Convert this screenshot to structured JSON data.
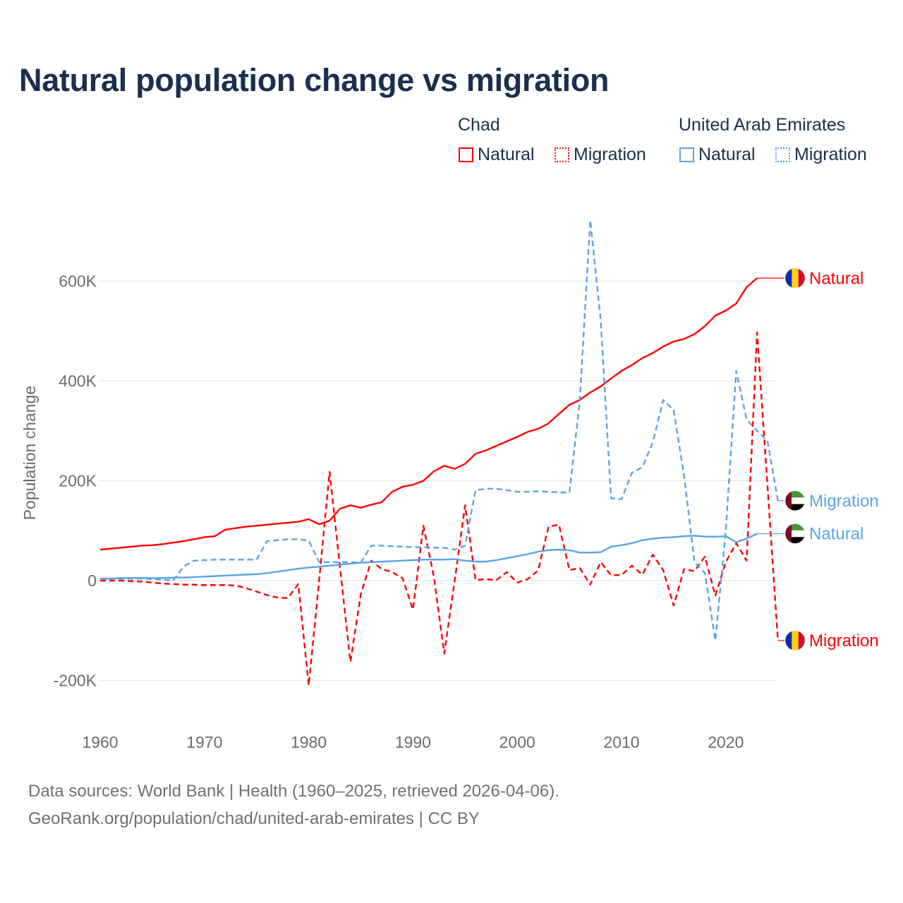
{
  "title": "Natural population change vs migration",
  "legend": {
    "groups": [
      {
        "name": "Chad",
        "items": [
          {
            "label": "Natural",
            "style": "solid"
          },
          {
            "label": "Migration",
            "style": "dotted"
          }
        ],
        "color": "#ff0000"
      },
      {
        "name": "United Arab Emirates",
        "items": [
          {
            "label": "Natural",
            "style": "solid"
          },
          {
            "label": "Migration",
            "style": "dotted"
          }
        ],
        "color": "#5ba3e6"
      }
    ]
  },
  "footer": {
    "line1": "Data sources: World Bank | Health (1960–2025, retrieved 2026-04-06).",
    "line2": "GeoRank.org/population/chad/united-arab-emirates | CC BY"
  },
  "chart_data": {
    "type": "line",
    "title": "Natural population change vs migration",
    "xlabel": "",
    "ylabel": "Population change",
    "xlim": [
      1960,
      2025
    ],
    "ylim": [
      -250,
      750
    ],
    "units": "thousands",
    "grid": true,
    "x_ticks": [
      "1960",
      "1970",
      "1980",
      "1990",
      "2000",
      "2010",
      "2020"
    ],
    "y_ticks": [
      {
        "value": -200,
        "label": "-200K"
      },
      {
        "value": 0,
        "label": "0"
      },
      {
        "value": 200,
        "label": "200K"
      },
      {
        "value": 400,
        "label": "400K"
      },
      {
        "value": 600,
        "label": "600K"
      }
    ],
    "x_start": 1960,
    "series": [
      {
        "name": "Chad Natural",
        "end_label": "Natural",
        "country": "Chad",
        "color": "#ff0000",
        "dashed": false,
        "values": [
          62,
          64,
          66,
          68,
          70,
          71,
          73,
          76,
          79,
          83,
          87,
          89,
          102,
          105,
          108,
          110,
          112,
          114,
          116,
          118,
          123,
          113,
          120,
          144,
          151,
          146,
          152,
          157,
          178,
          188,
          192,
          200,
          219,
          230,
          224,
          234,
          254,
          261,
          270,
          279,
          288,
          298,
          304,
          315,
          334,
          352,
          362,
          377,
          389,
          405,
          420,
          432,
          446,
          456,
          469,
          479,
          484,
          494,
          510,
          531,
          541,
          555,
          588,
          606,
          null,
          null
        ]
      },
      {
        "name": "Chad Migration",
        "end_label": "Migration",
        "country": "Chad",
        "color": "#ff0000",
        "dashed": true,
        "values": [
          0,
          0,
          0,
          -1,
          -2,
          -4,
          -6,
          -7,
          -8,
          -8,
          -9,
          -9,
          -9,
          -10,
          -15,
          -22,
          -29,
          -34,
          -35,
          -7,
          -210,
          0,
          218,
          27,
          -163,
          -27,
          40,
          23,
          17,
          5,
          -58,
          110,
          8,
          -146,
          0,
          151,
          1,
          3,
          1,
          17,
          -4,
          3,
          20,
          108,
          112,
          21,
          25,
          -8,
          37,
          11,
          11,
          30,
          12,
          52,
          21,
          -50,
          23,
          19,
          48,
          -30,
          37,
          75,
          40,
          497,
          190,
          -120
        ]
      },
      {
        "name": "United Arab Emirates Natural",
        "end_label": "Natural",
        "country": "United Arab Emirates",
        "color": "#5ba3e6",
        "dashed": false,
        "values": [
          4,
          4,
          5,
          5,
          5,
          5,
          5,
          6,
          6,
          7,
          8,
          9,
          10,
          11,
          12,
          13,
          15,
          18,
          21,
          24,
          26,
          28,
          30,
          32,
          34,
          36,
          37,
          38,
          39,
          40,
          41,
          42,
          42,
          42,
          43,
          40,
          38,
          38,
          41,
          45,
          49,
          53,
          58,
          61,
          62,
          61,
          56,
          56,
          57,
          68,
          71,
          75,
          81,
          84,
          86,
          87,
          89,
          90,
          88,
          88,
          89,
          77,
          84,
          94,
          null,
          null
        ]
      },
      {
        "name": "United Arab Emirates Migration",
        "end_label": "Migration",
        "country": "United Arab Emirates",
        "color": "#5ba3e6",
        "dashed": true,
        "values": [
          4,
          4,
          4,
          4,
          4,
          3,
          2,
          0,
          28,
          40,
          41,
          42,
          42,
          42,
          42,
          42,
          79,
          81,
          83,
          83,
          80,
          37,
          37,
          37,
          37,
          36,
          70,
          70,
          69,
          68,
          67,
          67,
          66,
          66,
          62,
          70,
          181,
          184,
          184,
          181,
          178,
          178,
          179,
          178,
          177,
          176,
          360,
          722,
          523,
          165,
          163,
          216,
          227,
          277,
          362,
          342,
          210,
          37,
          15,
          -120,
          100,
          420,
          323,
          300,
          280,
          160
        ]
      }
    ]
  }
}
